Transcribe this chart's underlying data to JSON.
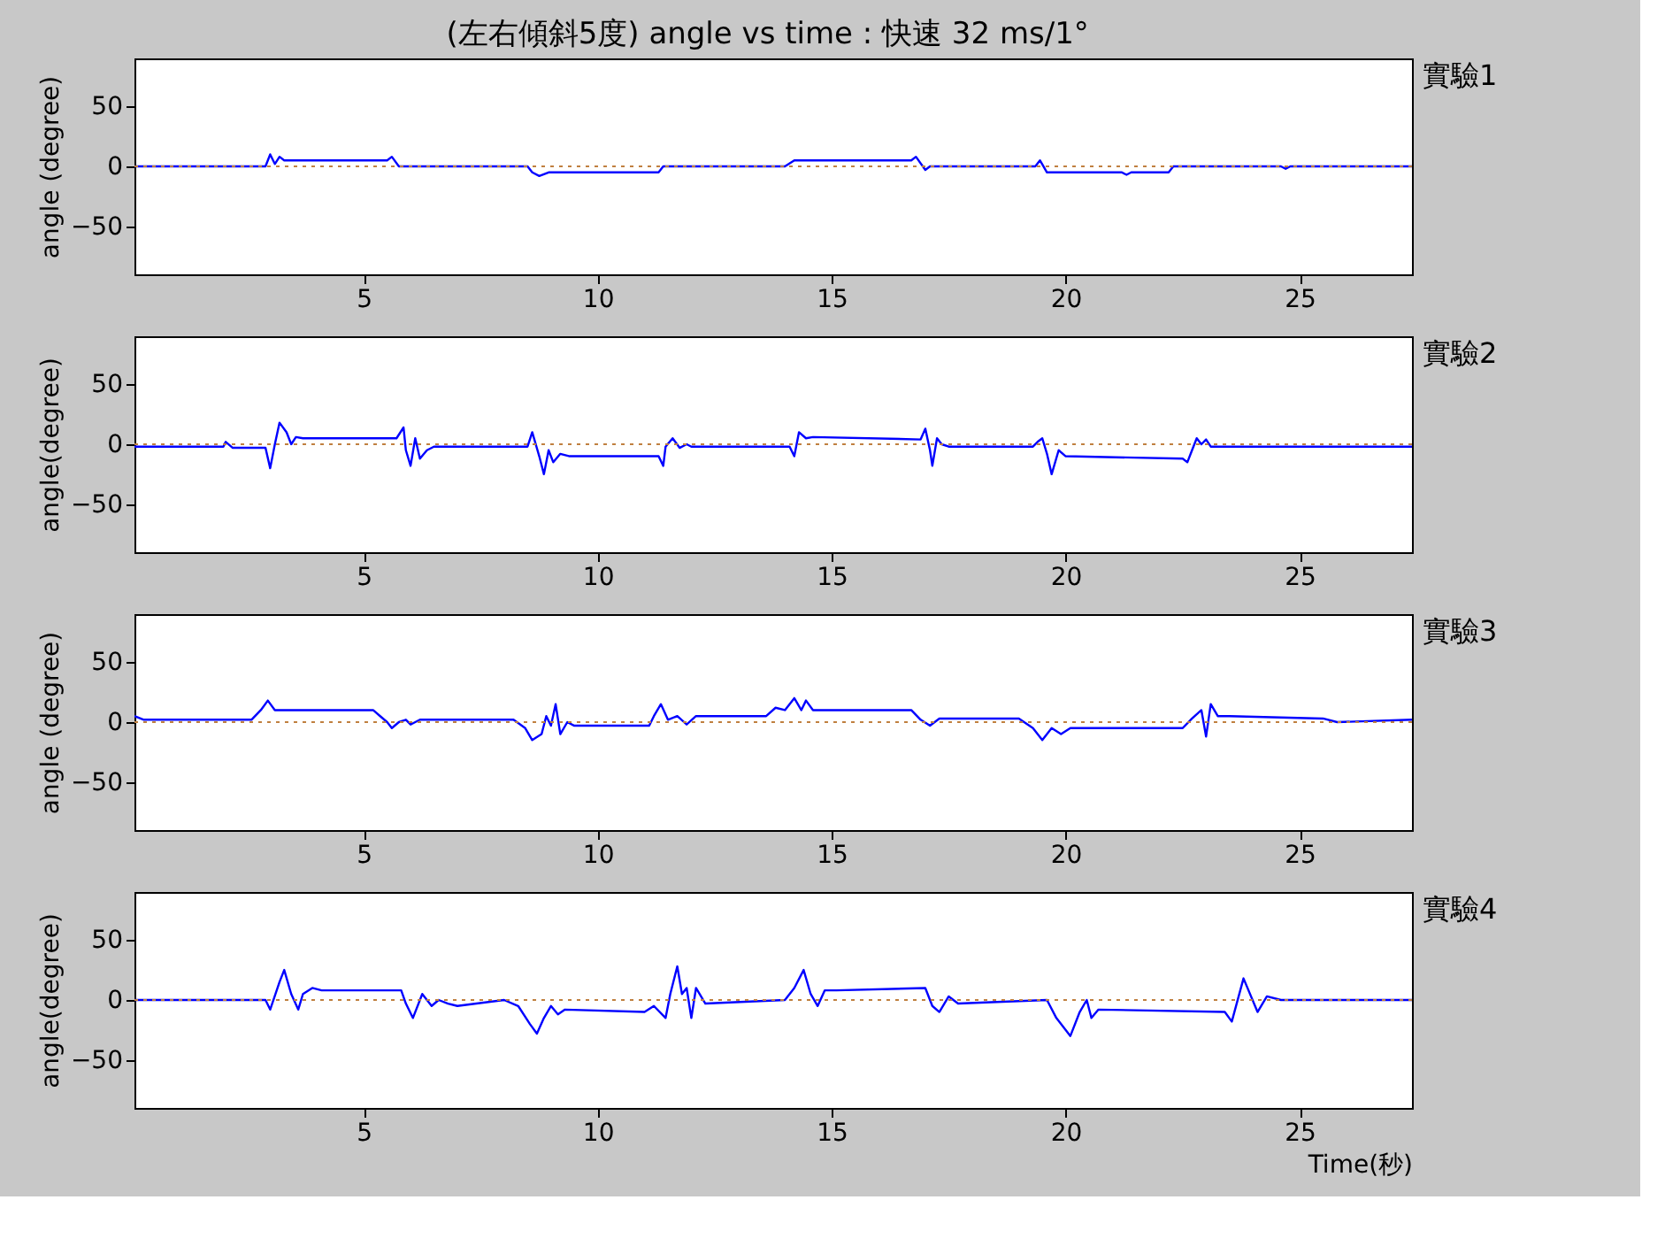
{
  "chart_data": [
    {
      "type": "line",
      "title": "(左右傾斜5度) angle  vs time : 快速 32 ms/1°",
      "ylabel": "angle (degree)",
      "xlim": [
        0.1,
        27.4
      ],
      "ylim": [
        -90,
        90
      ],
      "xticks": [
        5,
        10,
        15,
        20,
        25
      ],
      "yticks": [
        -50,
        0,
        50
      ],
      "grid": false,
      "line_style": "solid",
      "ref_lines": [
        {
          "axis": "y",
          "value": 0,
          "color": "#c08040",
          "line_style": "dotted"
        }
      ],
      "series": [
        {
          "name": "實驗1",
          "color": "#0000ff",
          "x": [
            0.1,
            2.9,
            3.0,
            3.1,
            3.2,
            3.3,
            5.5,
            5.6,
            5.75,
            8.5,
            8.6,
            8.75,
            8.95,
            11.3,
            11.4,
            14.0,
            14.2,
            16.7,
            16.8,
            17.0,
            17.1,
            19.35,
            19.45,
            19.6,
            21.2,
            21.3,
            21.4,
            22.2,
            22.3,
            24.6,
            24.7,
            24.8,
            27.4
          ],
          "values": [
            0,
            0,
            10,
            2,
            8,
            5,
            5,
            8,
            0,
            0,
            -5,
            -8,
            -5,
            -5,
            0,
            0,
            5,
            5,
            8,
            -3,
            0,
            0,
            5,
            -5,
            -5,
            -7,
            -5,
            -5,
            0,
            0,
            -2,
            0,
            0
          ]
        }
      ]
    },
    {
      "type": "line",
      "ylabel": "angle(degree)",
      "xlim": [
        0.1,
        27.4
      ],
      "ylim": [
        -90,
        90
      ],
      "xticks": [
        5,
        10,
        15,
        20,
        25
      ],
      "yticks": [
        -50,
        0,
        50
      ],
      "grid": false,
      "line_style": "solid",
      "ref_lines": [
        {
          "axis": "y",
          "value": 0,
          "color": "#c08040",
          "line_style": "dotted"
        }
      ],
      "series": [
        {
          "name": "實驗2",
          "color": "#0000ff",
          "x": [
            0.1,
            2.0,
            2.05,
            2.2,
            2.9,
            3.0,
            3.1,
            3.2,
            3.35,
            3.45,
            3.55,
            3.7,
            5.7,
            5.85,
            5.9,
            6.0,
            6.1,
            6.2,
            6.35,
            6.5,
            8.5,
            8.6,
            8.75,
            8.85,
            8.95,
            9.05,
            9.2,
            9.4,
            11.3,
            11.4,
            11.45,
            11.6,
            11.75,
            11.9,
            12.0,
            14.1,
            14.2,
            14.3,
            14.45,
            14.6,
            16.9,
            17.0,
            17.1,
            17.15,
            17.25,
            17.35,
            17.5,
            19.3,
            19.4,
            19.5,
            19.6,
            19.7,
            19.85,
            20.0,
            22.5,
            22.6,
            22.7,
            22.8,
            22.9,
            23.0,
            23.1,
            27.4
          ],
          "values": [
            -2,
            -2,
            2,
            -3,
            -3,
            -20,
            0,
            18,
            10,
            0,
            6,
            5,
            5,
            14,
            -5,
            -18,
            5,
            -12,
            -5,
            -2,
            -2,
            10,
            -10,
            -25,
            -5,
            -15,
            -8,
            -10,
            -10,
            -18,
            -2,
            5,
            -3,
            0,
            -2,
            -2,
            -10,
            10,
            5,
            6,
            4,
            13,
            -5,
            -18,
            5,
            0,
            -2,
            -2,
            2,
            5,
            -8,
            -25,
            -5,
            -10,
            -12,
            -15,
            -5,
            5,
            0,
            4,
            -2,
            -2
          ]
        }
      ]
    },
    {
      "type": "line",
      "ylabel": "angle (degree)",
      "xlim": [
        0.1,
        27.4
      ],
      "ylim": [
        -90,
        90
      ],
      "xticks": [
        5,
        10,
        15,
        20,
        25
      ],
      "yticks": [
        -50,
        0,
        50
      ],
      "grid": false,
      "line_style": "solid",
      "ref_lines": [
        {
          "axis": "y",
          "value": 0,
          "color": "#c08040",
          "line_style": "dotted"
        }
      ],
      "series": [
        {
          "name": "實驗3",
          "color": "#0000ff",
          "x": [
            0.1,
            0.3,
            2.6,
            2.8,
            2.95,
            3.1,
            5.2,
            5.35,
            5.5,
            5.6,
            5.75,
            5.9,
            6.0,
            6.2,
            8.2,
            8.45,
            8.6,
            8.8,
            8.9,
            9.0,
            9.1,
            9.2,
            9.35,
            9.5,
            11.1,
            11.2,
            11.35,
            11.5,
            11.7,
            11.9,
            12.1,
            13.6,
            13.8,
            14.0,
            14.2,
            14.35,
            14.45,
            14.6,
            16.7,
            16.9,
            17.1,
            17.3,
            19.0,
            19.3,
            19.5,
            19.7,
            19.9,
            20.1,
            22.5,
            22.7,
            22.9,
            23.0,
            23.1,
            23.25,
            23.5,
            25.5,
            25.8,
            27.4
          ],
          "values": [
            5,
            2,
            2,
            10,
            18,
            10,
            10,
            5,
            0,
            -5,
            0,
            2,
            -2,
            2,
            2,
            -5,
            -15,
            -10,
            5,
            -3,
            15,
            -10,
            0,
            -3,
            -3,
            5,
            15,
            2,
            5,
            -2,
            5,
            5,
            12,
            10,
            20,
            10,
            18,
            10,
            10,
            2,
            -3,
            3,
            3,
            -5,
            -15,
            -5,
            -10,
            -5,
            -5,
            3,
            10,
            -12,
            15,
            5,
            5,
            3,
            0,
            2
          ]
        }
      ]
    },
    {
      "type": "line",
      "ylabel": "angle(degree)",
      "xlabel": "Time(秒)",
      "xlim": [
        0.1,
        27.4
      ],
      "ylim": [
        -90,
        90
      ],
      "xticks": [
        5,
        10,
        15,
        20,
        25
      ],
      "yticks": [
        -50,
        0,
        50
      ],
      "grid": false,
      "line_style": "solid",
      "ref_lines": [
        {
          "axis": "y",
          "value": 0,
          "color": "#c08040",
          "line_style": "dotted"
        }
      ],
      "series": [
        {
          "name": "實驗4",
          "color": "#0000ff",
          "x": [
            0.1,
            2.9,
            3.0,
            3.2,
            3.3,
            3.45,
            3.6,
            3.7,
            3.9,
            4.1,
            5.8,
            5.9,
            6.05,
            6.25,
            6.45,
            6.6,
            6.8,
            7.0,
            8.0,
            8.3,
            8.55,
            8.7,
            8.85,
            9.0,
            9.15,
            9.3,
            11.0,
            11.2,
            11.45,
            11.55,
            11.7,
            11.8,
            11.9,
            12.0,
            12.1,
            12.3,
            14.0,
            14.2,
            14.4,
            14.55,
            14.7,
            14.85,
            15.1,
            17.0,
            17.15,
            17.3,
            17.5,
            17.7,
            19.6,
            19.8,
            20.1,
            20.3,
            20.45,
            20.55,
            20.7,
            23.4,
            23.55,
            23.8,
            24.1,
            24.3,
            24.6,
            27.4
          ],
          "values": [
            0,
            0,
            -8,
            15,
            25,
            5,
            -8,
            5,
            10,
            8,
            8,
            -3,
            -15,
            5,
            -5,
            0,
            -3,
            -5,
            0,
            -5,
            -20,
            -28,
            -15,
            -5,
            -12,
            -8,
            -10,
            -5,
            -15,
            5,
            28,
            5,
            10,
            -15,
            10,
            -3,
            0,
            10,
            25,
            5,
            -5,
            8,
            8,
            10,
            -5,
            -10,
            3,
            -3,
            0,
            -15,
            -30,
            -10,
            0,
            -15,
            -8,
            -10,
            -18,
            18,
            -10,
            3,
            0,
            0
          ]
        }
      ]
    }
  ]
}
